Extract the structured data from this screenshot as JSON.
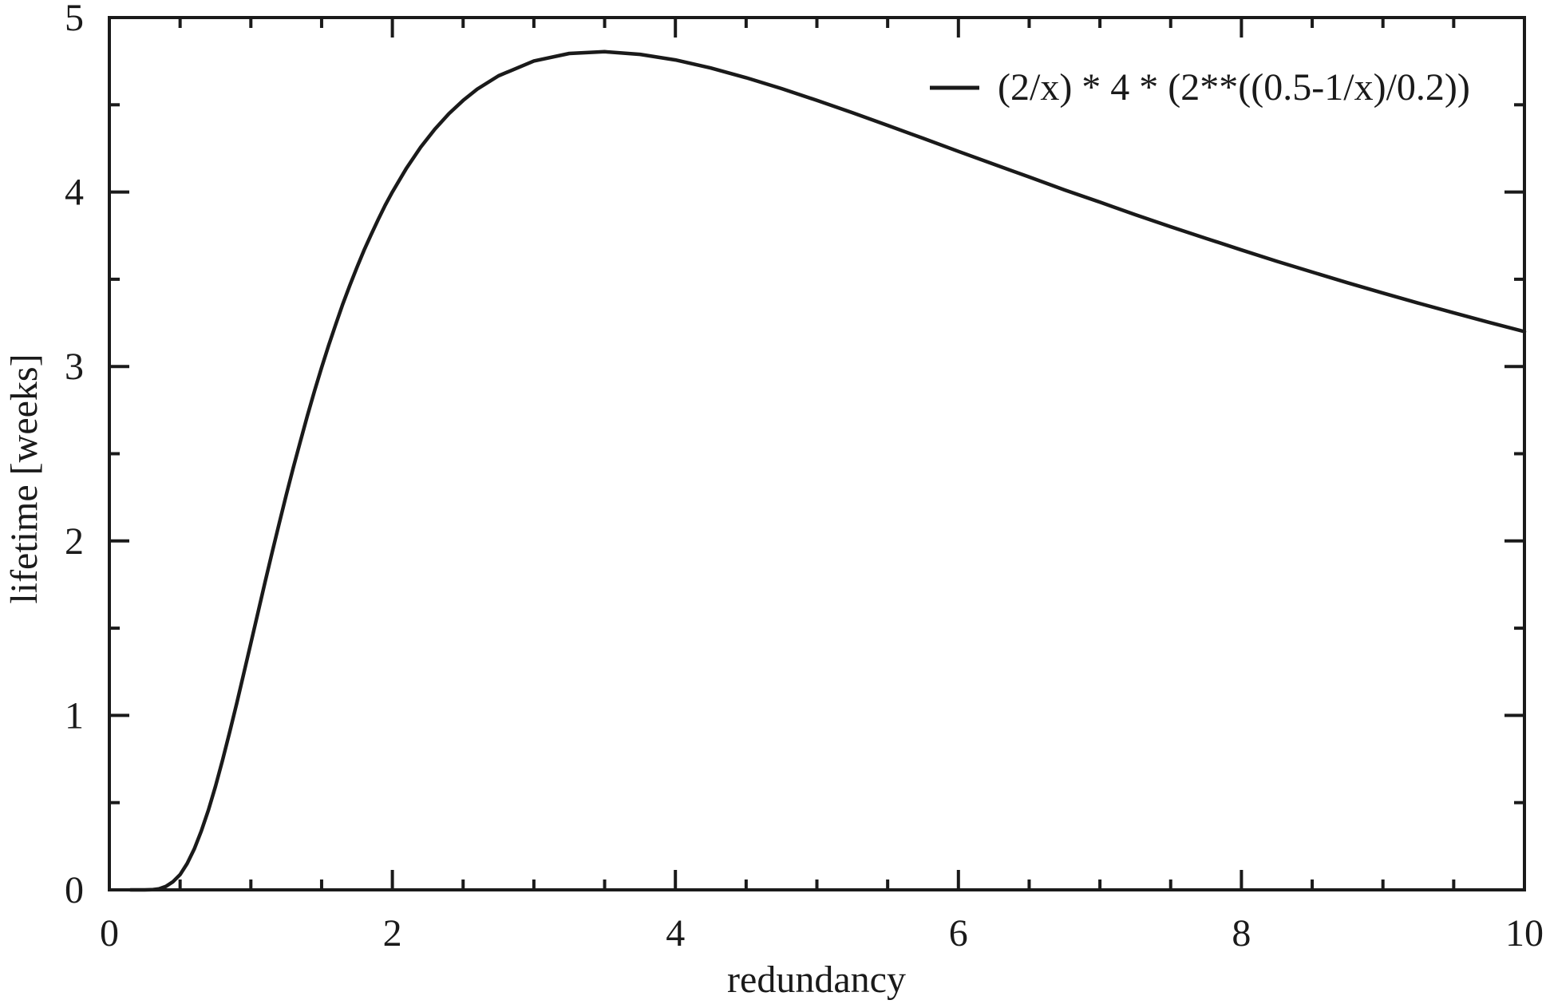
{
  "figure": {
    "background_color": "#ffffff",
    "ink_color": "#1a1a1a"
  },
  "chart_data": {
    "type": "line",
    "title": "",
    "xlabel": "redundancy",
    "ylabel": "lifetime [weeks]",
    "xlim": [
      0,
      10
    ],
    "ylim": [
      0,
      5
    ],
    "x_ticks": [
      0,
      2,
      4,
      6,
      8,
      10
    ],
    "y_ticks": [
      0,
      1,
      2,
      3,
      4,
      5
    ],
    "x_minor_tick_interval": 0.5,
    "y_minor_tick_interval": 0.5,
    "grid": false,
    "legend_position": "top-right-inside",
    "series": [
      {
        "name": "(2/x) * 4 * (2**((0.5-1/x)/0.2))",
        "color": "#1a1a1a",
        "points": [
          [
            0.15,
            0.0
          ],
          [
            0.25,
            0.0
          ],
          [
            0.3,
            0.001
          ],
          [
            0.35,
            0.006
          ],
          [
            0.4,
            0.02
          ],
          [
            0.45,
            0.047
          ],
          [
            0.5,
            0.088
          ],
          [
            0.55,
            0.151
          ],
          [
            0.6,
            0.234
          ],
          [
            0.65,
            0.337
          ],
          [
            0.7,
            0.457
          ],
          [
            0.75,
            0.594
          ],
          [
            0.8,
            0.743
          ],
          [
            0.85,
            0.903
          ],
          [
            0.9,
            1.069
          ],
          [
            0.95,
            1.24
          ],
          [
            1.0,
            1.414
          ],
          [
            1.05,
            1.589
          ],
          [
            1.1,
            1.762
          ],
          [
            1.15,
            1.933
          ],
          [
            1.2,
            2.1
          ],
          [
            1.25,
            2.263
          ],
          [
            1.3,
            2.421
          ],
          [
            1.35,
            2.572
          ],
          [
            1.4,
            2.719
          ],
          [
            1.45,
            2.86
          ],
          [
            1.5,
            2.993
          ],
          [
            1.55,
            3.121
          ],
          [
            1.6,
            3.242
          ],
          [
            1.65,
            3.358
          ],
          [
            1.7,
            3.466
          ],
          [
            1.75,
            3.569
          ],
          [
            1.8,
            3.666
          ],
          [
            1.85,
            3.756
          ],
          [
            1.9,
            3.843
          ],
          [
            1.95,
            3.925
          ],
          [
            2.0,
            4.0
          ],
          [
            2.1,
            4.137
          ],
          [
            2.2,
            4.257
          ],
          [
            2.3,
            4.36
          ],
          [
            2.4,
            4.449
          ],
          [
            2.5,
            4.525
          ],
          [
            2.6,
            4.59
          ],
          [
            2.75,
            4.666
          ],
          [
            3.0,
            4.751
          ],
          [
            3.25,
            4.794
          ],
          [
            3.5,
            4.804
          ],
          [
            3.75,
            4.789
          ],
          [
            4.0,
            4.757
          ],
          [
            4.25,
            4.711
          ],
          [
            4.5,
            4.655
          ],
          [
            4.75,
            4.593
          ],
          [
            5.0,
            4.525
          ],
          [
            5.25,
            4.455
          ],
          [
            5.5,
            4.382
          ],
          [
            5.75,
            4.308
          ],
          [
            6.0,
            4.233
          ],
          [
            6.25,
            4.159
          ],
          [
            6.5,
            4.086
          ],
          [
            6.75,
            4.012
          ],
          [
            7.0,
            3.942
          ],
          [
            7.25,
            3.87
          ],
          [
            7.5,
            3.801
          ],
          [
            7.75,
            3.734
          ],
          [
            8.0,
            3.668
          ],
          [
            8.25,
            3.603
          ],
          [
            8.5,
            3.541
          ],
          [
            8.75,
            3.48
          ],
          [
            9.0,
            3.421
          ],
          [
            9.25,
            3.363
          ],
          [
            9.5,
            3.308
          ],
          [
            9.75,
            3.253
          ],
          [
            10.0,
            3.2
          ]
        ]
      }
    ]
  }
}
